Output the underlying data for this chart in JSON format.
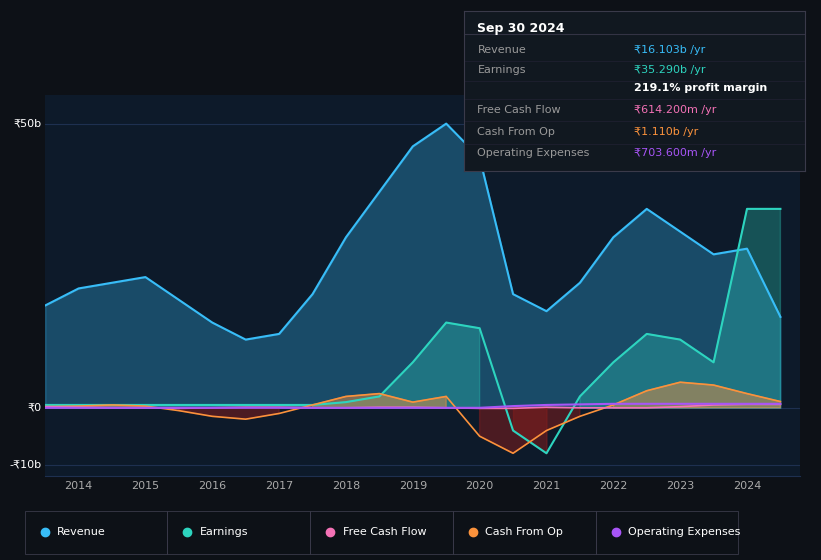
{
  "background_color": "#0d1117",
  "plot_bg_color": "#0d1a2a",
  "grid_color": "#1e3050",
  "legend": [
    {
      "label": "Revenue",
      "color": "#38bdf8"
    },
    {
      "label": "Earnings",
      "color": "#2dd4bf"
    },
    {
      "label": "Free Cash Flow",
      "color": "#f472b6"
    },
    {
      "label": "Cash From Op",
      "color": "#fb923c"
    },
    {
      "label": "Operating Expenses",
      "color": "#a855f7"
    }
  ],
  "info_box": {
    "title": "Sep 30 2024",
    "rows": [
      {
        "label": "Revenue",
        "value": "₹16.103b /yr",
        "value_color": "#38bdf8"
      },
      {
        "label": "Earnings",
        "value": "₹35.290b /yr",
        "value_color": "#2dd4bf"
      },
      {
        "label": "",
        "value": "219.1% profit margin",
        "value_color": "#ffffff"
      },
      {
        "label": "Free Cash Flow",
        "value": "₹614.200m /yr",
        "value_color": "#f472b6"
      },
      {
        "label": "Cash From Op",
        "value": "₹1.110b /yr",
        "value_color": "#fb923c"
      },
      {
        "label": "Operating Expenses",
        "value": "₹703.600m /yr",
        "value_color": "#a855f7"
      }
    ]
  },
  "x": [
    2013.5,
    2014.0,
    2014.5,
    2015.0,
    2015.5,
    2016.0,
    2016.5,
    2017.0,
    2017.5,
    2018.0,
    2018.5,
    2019.0,
    2019.5,
    2020.0,
    2020.5,
    2021.0,
    2021.5,
    2022.0,
    2022.5,
    2023.0,
    2023.5,
    2024.0,
    2024.5
  ],
  "revenue": [
    18,
    21,
    22,
    23,
    19,
    15,
    12,
    13,
    20,
    30,
    38,
    46,
    50,
    44,
    20,
    17,
    22,
    30,
    35,
    31,
    27,
    28,
    16
  ],
  "earnings": [
    0.5,
    0.5,
    0.5,
    0.5,
    0.5,
    0.5,
    0.5,
    0.5,
    0.5,
    1,
    2,
    8,
    15,
    14,
    -4,
    -8,
    2,
    8,
    13,
    12,
    8,
    35,
    35
  ],
  "free_cash_flow": [
    0.2,
    0.1,
    0.0,
    0.0,
    -0.1,
    0.0,
    0.1,
    0.1,
    0.0,
    0.0,
    0.1,
    0.1,
    0.0,
    -0.1,
    -0.1,
    0.1,
    0.0,
    0.0,
    0.0,
    0.2,
    0.5,
    0.6,
    0.6
  ],
  "cash_from_op": [
    0.2,
    0.3,
    0.5,
    0.3,
    -0.5,
    -1.5,
    -2,
    -1,
    0.5,
    2,
    2.5,
    1,
    2,
    -5,
    -8,
    -4,
    -1.5,
    0.5,
    3,
    4.5,
    4,
    2.5,
    1.1
  ],
  "operating_expenses": [
    0.0,
    0.0,
    0.0,
    0.0,
    0.0,
    0.0,
    0.0,
    0.0,
    0.0,
    0.0,
    0.0,
    0.0,
    0.0,
    0.0,
    0.3,
    0.5,
    0.6,
    0.7,
    0.7,
    0.7,
    0.7,
    0.7,
    0.7
  ],
  "ylim": [
    -12,
    55
  ],
  "xlim": [
    2013.5,
    2024.8
  ],
  "hlines": [
    {
      "y": -10,
      "label": "-₹10b"
    },
    {
      "y": 0,
      "label": "₹0"
    },
    {
      "y": 50,
      "label": "₹50b"
    }
  ],
  "xtick_positions": [
    2014,
    2015,
    2016,
    2017,
    2018,
    2019,
    2020,
    2021,
    2022,
    2023,
    2024
  ]
}
